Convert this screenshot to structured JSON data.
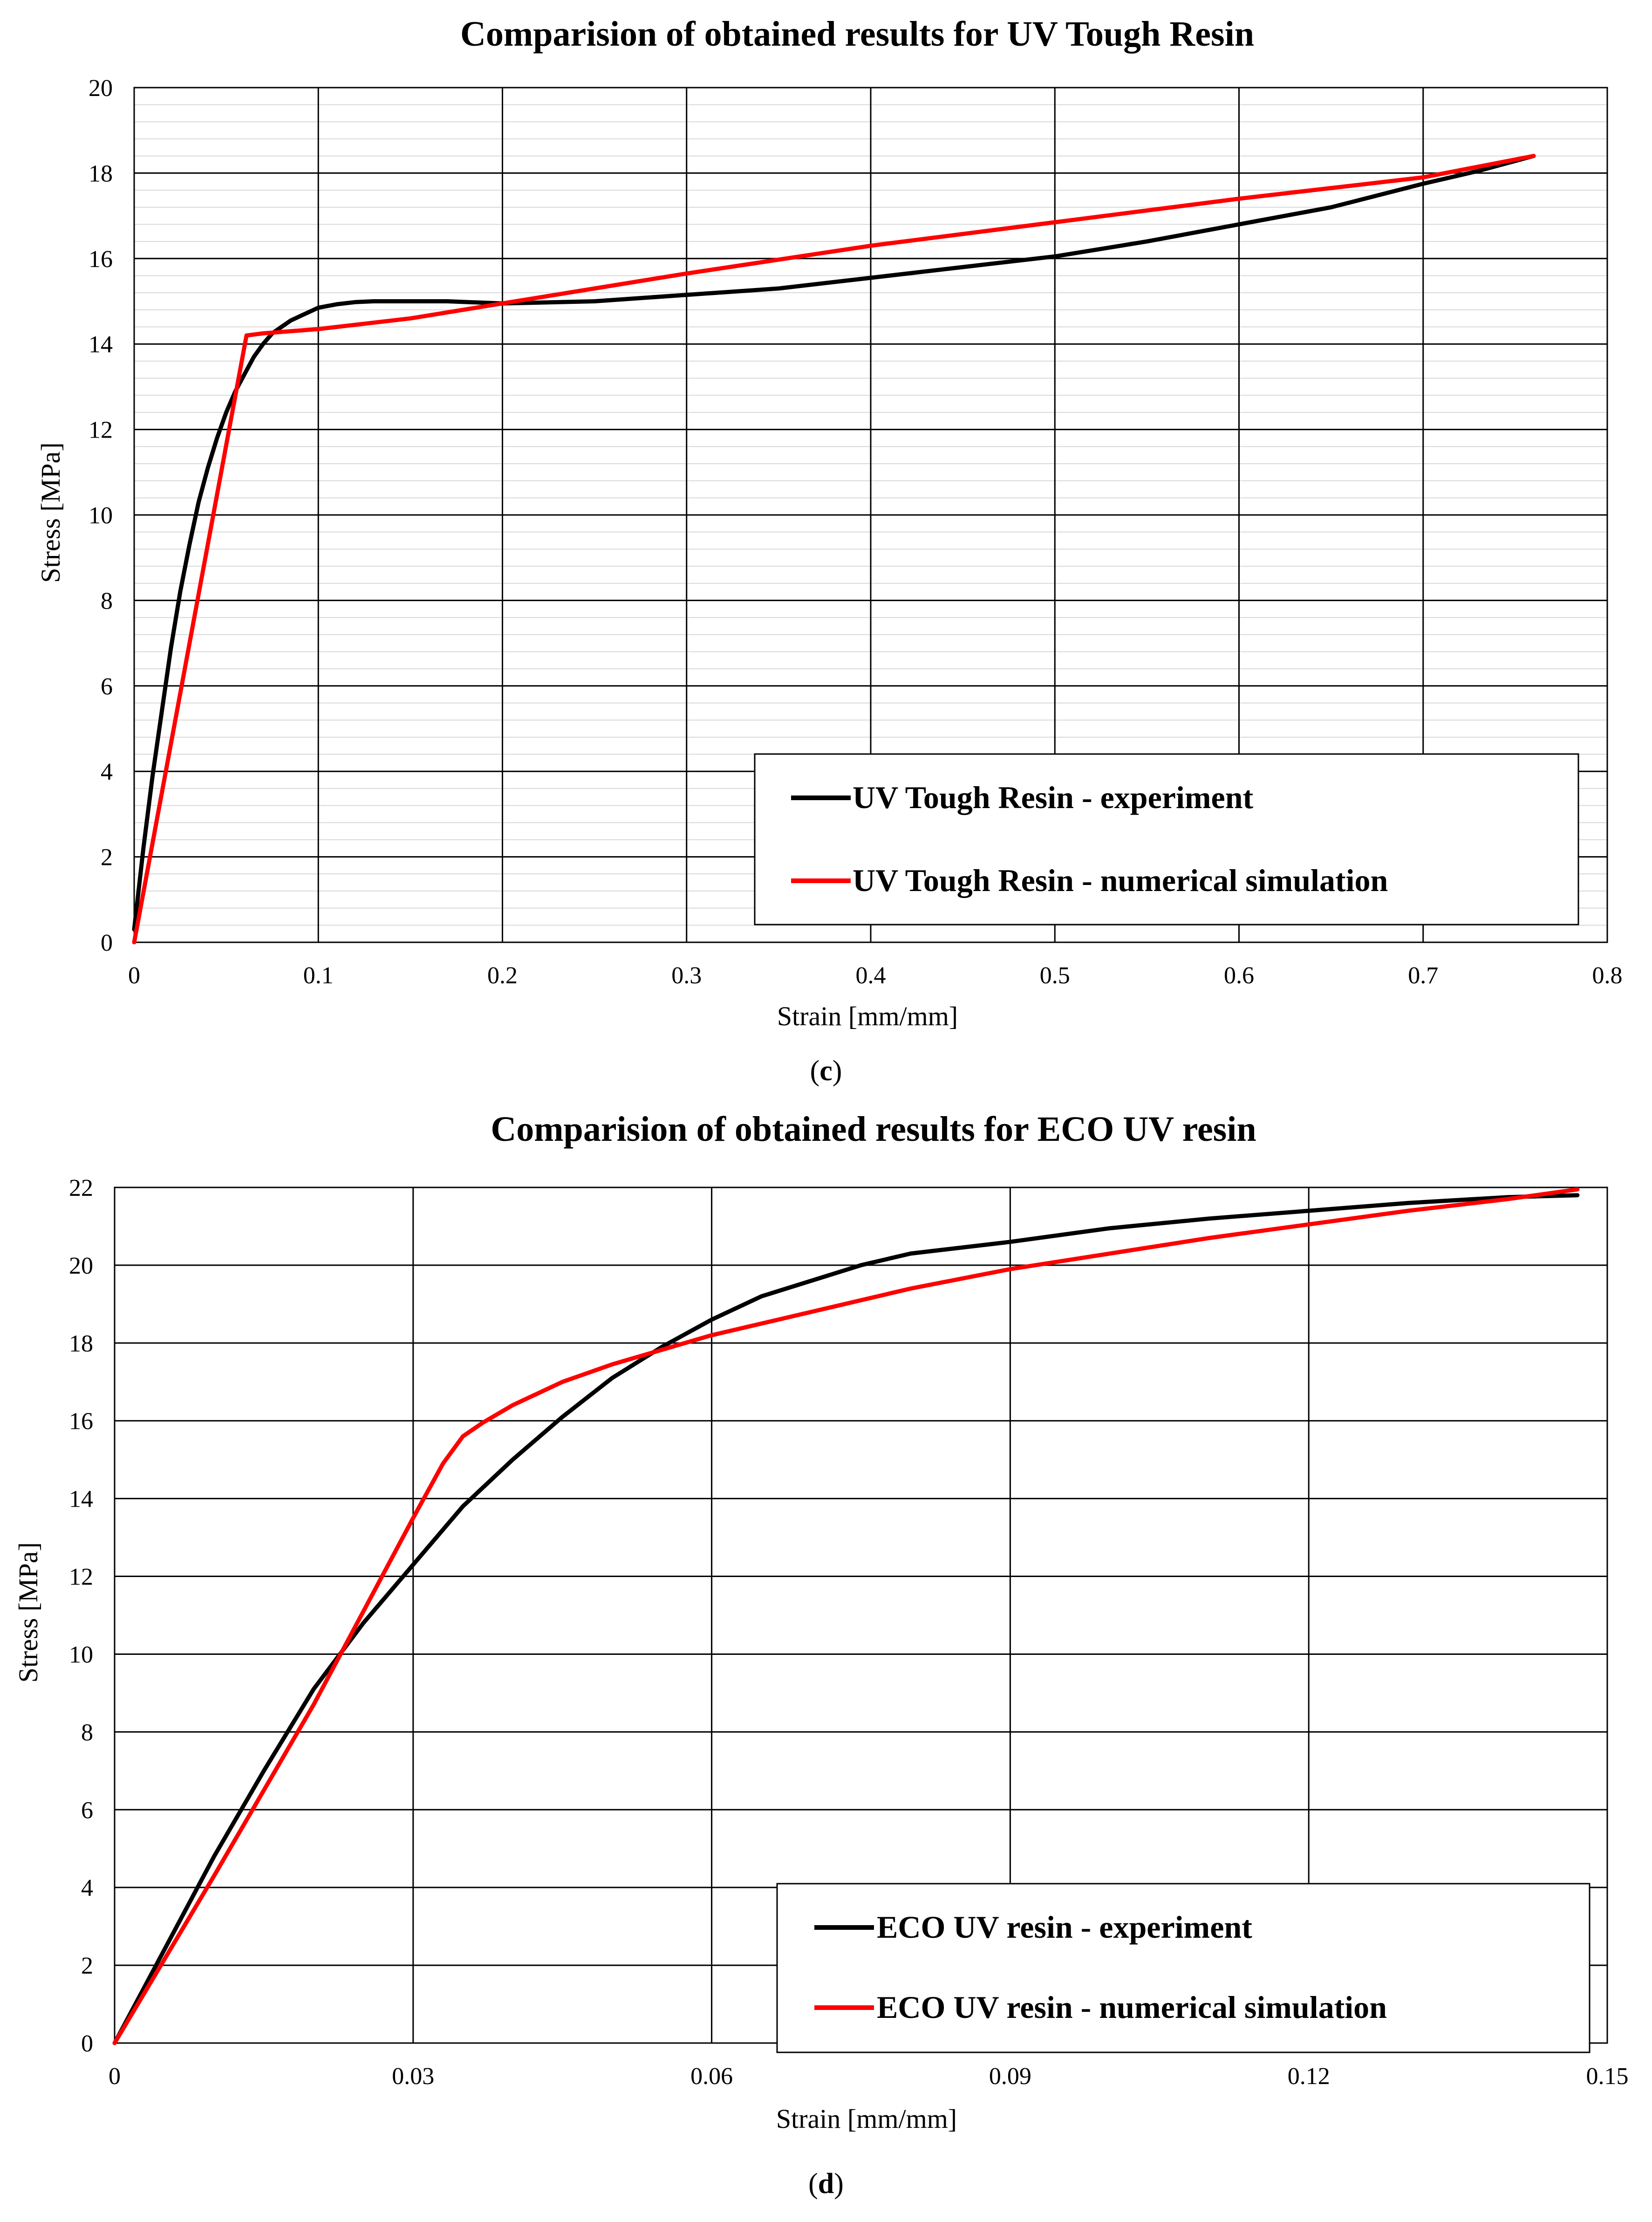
{
  "chart_data": [
    {
      "type": "line",
      "panel": "c",
      "title": "Comparision of obtained results for UV Tough Resin",
      "xlabel": "Strain [mm/mm]",
      "ylabel": "Stress [MPa]",
      "xlim": [
        0,
        0.8
      ],
      "ylim": [
        0,
        20
      ],
      "xticks": [
        0,
        0.1,
        0.2,
        0.3,
        0.4,
        0.5,
        0.6,
        0.7,
        0.8
      ],
      "xtick_labels": [
        "0",
        "0.1",
        "0.2",
        "0.3",
        "0.4",
        "0.5",
        "0.6",
        "0.7",
        "0.8"
      ],
      "yticks": [
        0,
        2,
        4,
        6,
        8,
        10,
        12,
        14,
        16,
        18,
        20
      ],
      "ytick_labels": [
        "0",
        "2",
        "4",
        "6",
        "8",
        "10",
        "12",
        "14",
        "16",
        "18",
        "20"
      ],
      "minor_y_step": 0.4,
      "legend_position": "bottom-right",
      "caption_open": "(",
      "caption_letter": "c",
      "caption_close": ")",
      "series": [
        {
          "name": "UV Tough Resin - experiment",
          "color": "#000000",
          "x": [
            0,
            0.005,
            0.01,
            0.015,
            0.02,
            0.025,
            0.03,
            0.035,
            0.04,
            0.045,
            0.05,
            0.055,
            0.06,
            0.065,
            0.07,
            0.075,
            0.08,
            0.085,
            0.09,
            0.095,
            0.1,
            0.11,
            0.12,
            0.13,
            0.15,
            0.17,
            0.2,
            0.25,
            0.3,
            0.35,
            0.4,
            0.45,
            0.5,
            0.55,
            0.6,
            0.65,
            0.7,
            0.73,
            0.76
          ],
          "y": [
            0.3,
            2.2,
            3.9,
            5.4,
            6.9,
            8.2,
            9.3,
            10.3,
            11.1,
            11.8,
            12.4,
            12.9,
            13.3,
            13.7,
            14.0,
            14.25,
            14.4,
            14.55,
            14.65,
            14.75,
            14.85,
            14.93,
            14.98,
            15.0,
            15.0,
            15.0,
            14.95,
            15.0,
            15.15,
            15.3,
            15.55,
            15.8,
            16.05,
            16.4,
            16.8,
            17.2,
            17.75,
            18.05,
            18.4
          ]
        },
        {
          "name": "UV Tough Resin - numerical simulation",
          "color": "#ff0000",
          "x": [
            0,
            0.061,
            0.07,
            0.1,
            0.15,
            0.2,
            0.25,
            0.3,
            0.4,
            0.5,
            0.6,
            0.7,
            0.76
          ],
          "y": [
            0,
            14.2,
            14.25,
            14.35,
            14.6,
            14.95,
            15.3,
            15.65,
            16.3,
            16.85,
            17.4,
            17.9,
            18.4
          ]
        }
      ]
    },
    {
      "type": "line",
      "panel": "d",
      "title": "Comparision of obtained results for ECO UV resin",
      "xlabel": "Strain [mm/mm]",
      "ylabel": "Stress [MPa]",
      "xlim": [
        0,
        0.15
      ],
      "ylim": [
        0,
        22
      ],
      "xticks": [
        0,
        0.03,
        0.06,
        0.09,
        0.12,
        0.15
      ],
      "xtick_labels": [
        "0",
        "0.03",
        "0.06",
        "0.09",
        "0.12",
        "0.15"
      ],
      "yticks": [
        0,
        2,
        4,
        6,
        8,
        10,
        12,
        14,
        16,
        18,
        20,
        22
      ],
      "ytick_labels": [
        "0",
        "2",
        "4",
        "6",
        "8",
        "10",
        "12",
        "14",
        "16",
        "18",
        "20",
        "22"
      ],
      "minor_y_step": 0,
      "legend_position": "bottom-right",
      "caption_open": "(",
      "caption_letter": "d",
      "caption_close": ")",
      "series": [
        {
          "name": "ECO UV resin - experiment",
          "color": "#000000",
          "x": [
            0,
            0.005,
            0.01,
            0.015,
            0.02,
            0.025,
            0.03,
            0.035,
            0.04,
            0.045,
            0.05,
            0.055,
            0.06,
            0.065,
            0.07,
            0.075,
            0.08,
            0.09,
            0.1,
            0.11,
            0.12,
            0.13,
            0.14,
            0.147
          ],
          "y": [
            0,
            2.4,
            4.8,
            7.0,
            9.1,
            10.8,
            12.3,
            13.8,
            15.0,
            16.1,
            17.1,
            17.9,
            18.6,
            19.2,
            19.6,
            20.0,
            20.3,
            20.6,
            20.95,
            21.2,
            21.4,
            21.6,
            21.75,
            21.8
          ]
        },
        {
          "name": "ECO UV resin - numerical simulation",
          "color": "#ff0000",
          "x": [
            0,
            0.01,
            0.02,
            0.025,
            0.03,
            0.033,
            0.035,
            0.037,
            0.04,
            0.045,
            0.05,
            0.06,
            0.07,
            0.08,
            0.09,
            0.1,
            0.11,
            0.12,
            0.13,
            0.14,
            0.147
          ],
          "y": [
            0,
            4.3,
            8.7,
            11.1,
            13.5,
            14.9,
            15.6,
            15.95,
            16.4,
            17.0,
            17.45,
            18.2,
            18.8,
            19.4,
            19.9,
            20.3,
            20.7,
            21.05,
            21.4,
            21.7,
            21.95
          ]
        }
      ]
    }
  ]
}
